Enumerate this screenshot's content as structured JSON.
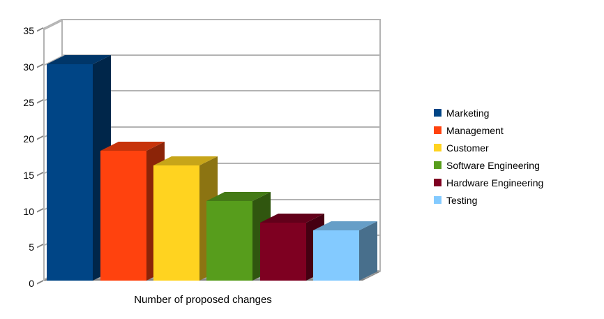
{
  "chart_data": {
    "type": "bar",
    "style": "3d",
    "title": "",
    "xlabel": "Number of proposed changes",
    "ylabel": "",
    "ylim": [
      0,
      35
    ],
    "yticks": [
      0,
      5,
      10,
      15,
      20,
      25,
      30,
      35
    ],
    "grid": true,
    "legend_position": "right",
    "categories": [
      "Marketing",
      "Management",
      "Customer",
      "Software Engineering",
      "Hardware Engineering",
      "Testing"
    ],
    "series": [
      {
        "name": "Marketing",
        "value": 30,
        "color": "#004586"
      },
      {
        "name": "Management",
        "value": 18,
        "color": "#ff420e"
      },
      {
        "name": "Customer",
        "value": 16,
        "color": "#ffd320"
      },
      {
        "name": "Software Engineering",
        "value": 11,
        "color": "#579d1c"
      },
      {
        "name": "Hardware Engineering",
        "value": 8,
        "color": "#7e0021"
      },
      {
        "name": "Testing",
        "value": 7,
        "color": "#83caff"
      }
    ]
  },
  "colors": {
    "background": "#ffffff",
    "wall_line": "#b3b3b3",
    "floor": "#9e9e9e",
    "tick": "#808080",
    "text": "#000000"
  }
}
